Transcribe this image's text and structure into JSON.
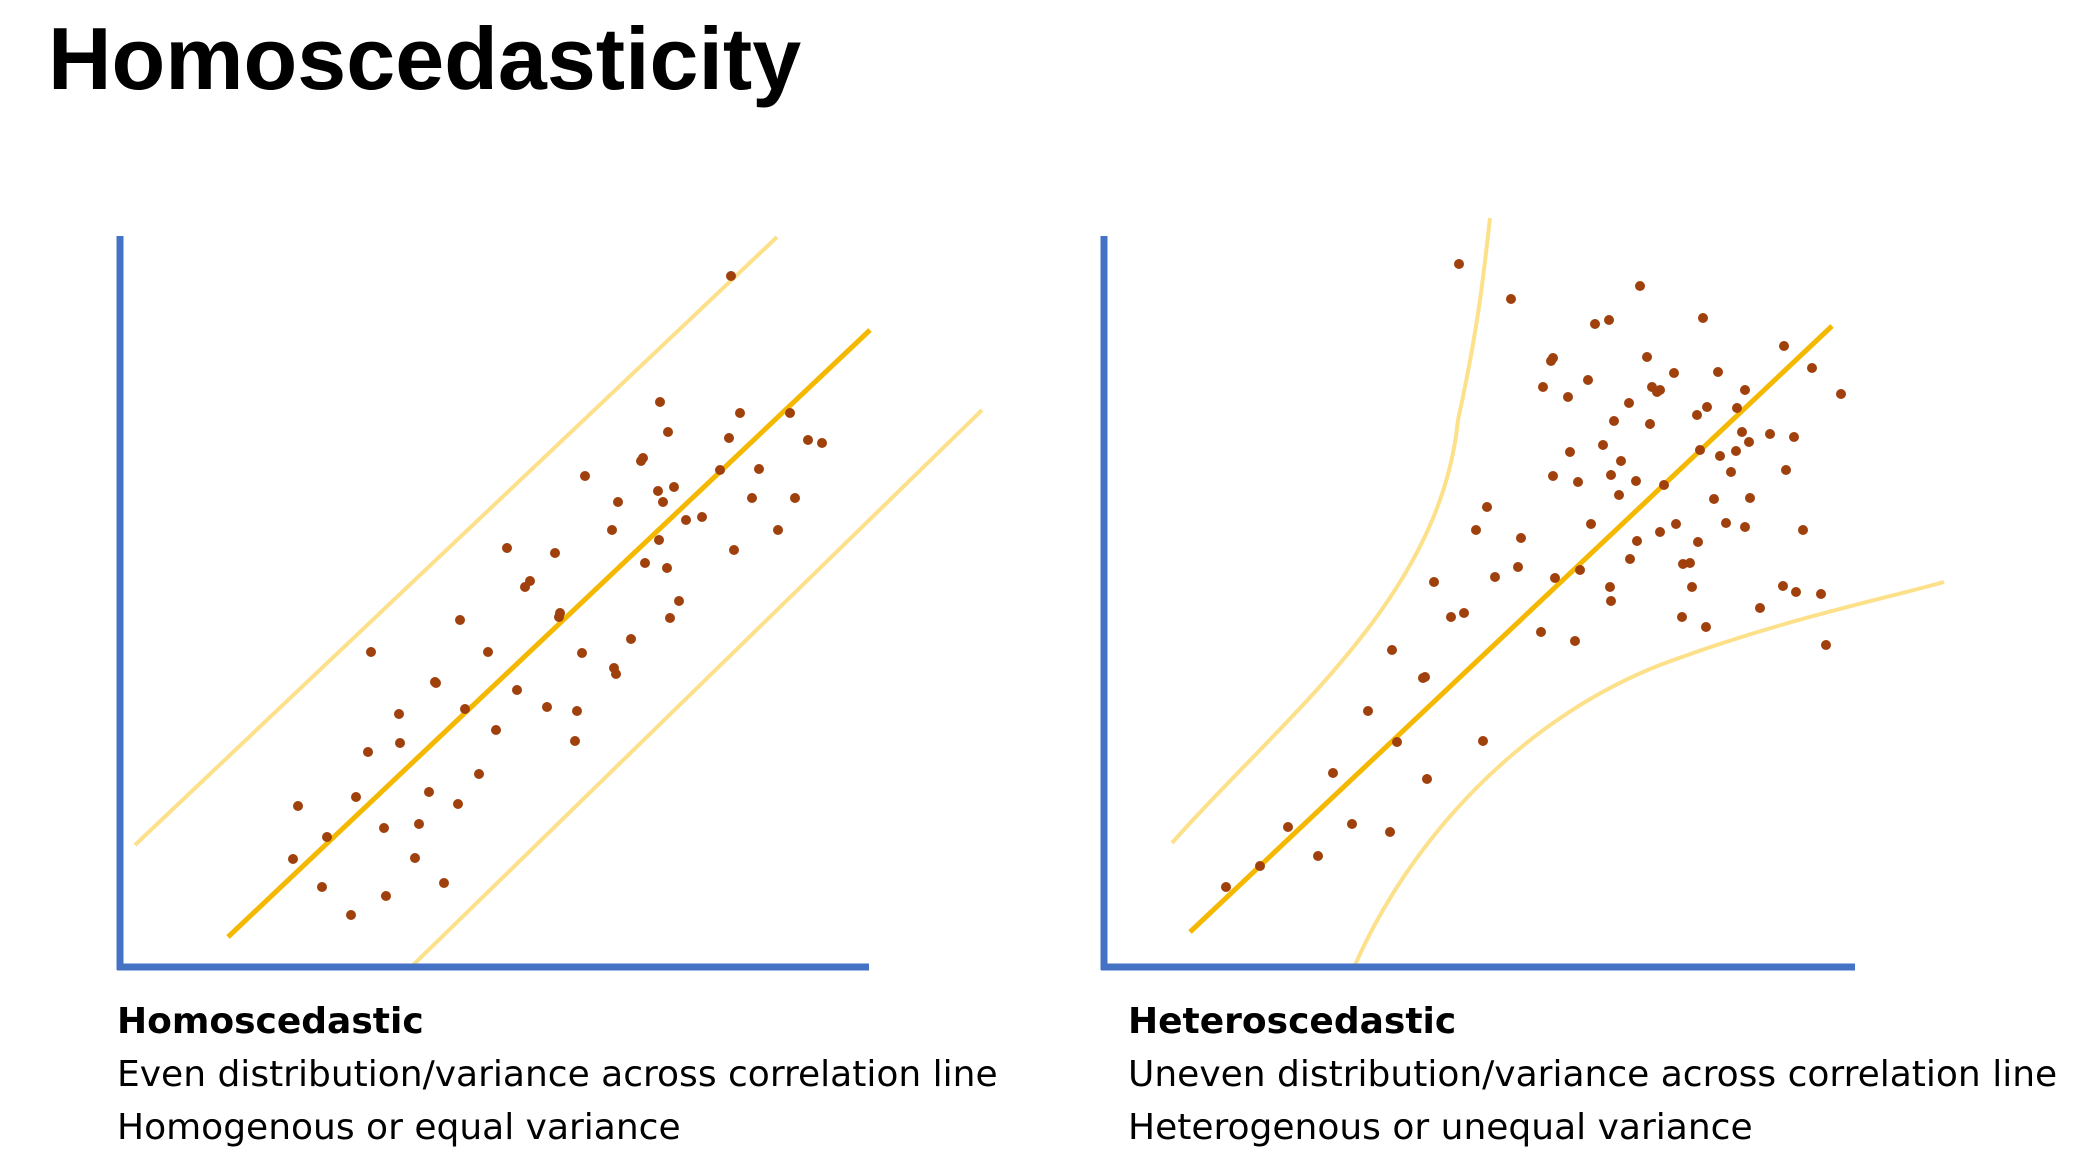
{
  "title": "Homoscedasticity",
  "colors": {
    "axis": "#4472c4",
    "regression_line": "#f5b800",
    "band": "#fde08a",
    "points": "#a0410d"
  },
  "panels": [
    {
      "id": "homoscedastic",
      "caption": {
        "title": "Homoscedastic",
        "line1": "Even distribution/variance across correlation line",
        "line2": "Homogenous or equal variance"
      }
    },
    {
      "id": "heteroscedastic",
      "caption": {
        "title": "Heteroscedastic",
        "line1": "Uneven distribution/variance across correlation line",
        "line2": "Heterogenous or unequal variance"
      }
    }
  ]
}
